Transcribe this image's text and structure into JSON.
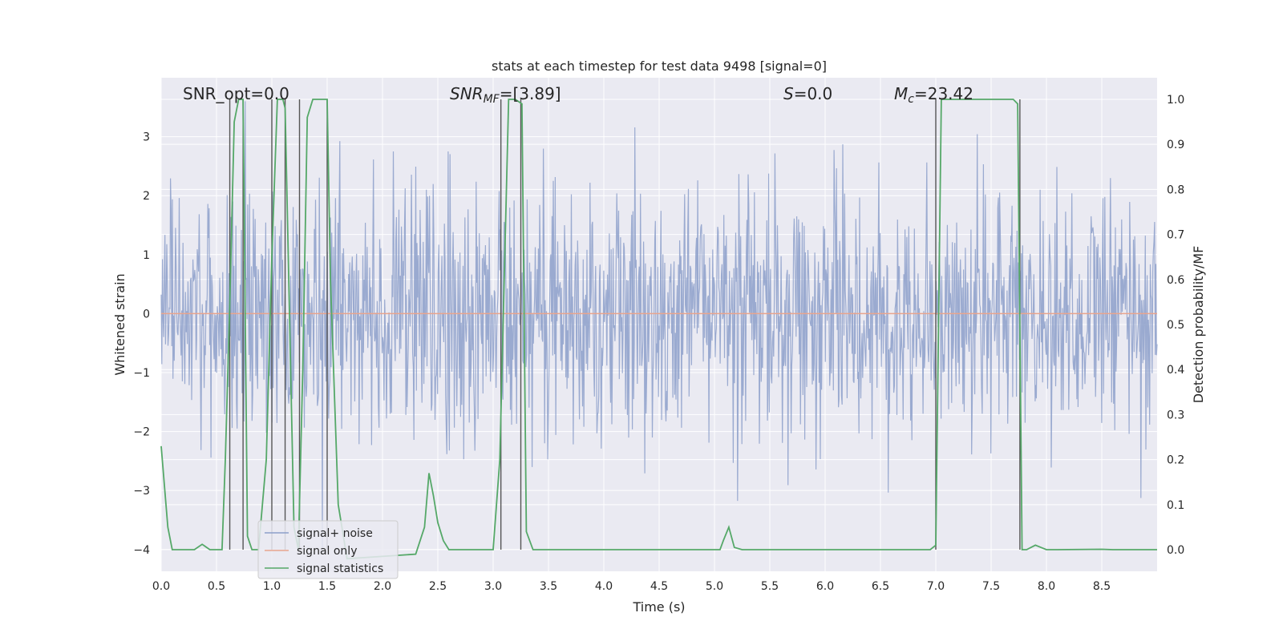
{
  "chart_data": {
    "type": "line",
    "title": "stats at each timestep for test data 9498 [signal=0]",
    "xlabel": "Time (s)",
    "ylabel_left": "Whitened strain",
    "ylabel_right": "Detection probability/MF",
    "xlim": [
      0.0,
      9.0
    ],
    "ylim_left": [
      -4.37,
      4.0
    ],
    "ylim_right": [
      -0.048,
      1.048
    ],
    "xticks": [
      "0.0",
      "0.5",
      "1.0",
      "1.5",
      "2.0",
      "2.5",
      "3.0",
      "3.5",
      "4.0",
      "4.5",
      "5.0",
      "5.5",
      "6.0",
      "6.5",
      "7.0",
      "7.5",
      "8.0",
      "8.5"
    ],
    "yticks_left": [
      "3",
      "2",
      "1",
      "0",
      "−1",
      "−2",
      "−3",
      "−4"
    ],
    "yticks_right": [
      "1.0",
      "0.9",
      "0.8",
      "0.7",
      "0.6",
      "0.5",
      "0.4",
      "0.3",
      "0.2",
      "0.1",
      "0.0"
    ],
    "grid": true,
    "legend_placement": "lower-left",
    "annotations": {
      "snr_opt": "SNR_opt=0.0",
      "snr_mf_main": "SNR",
      "snr_mf_sub": "MF",
      "snr_mf_value": "=[3.89]",
      "s_main": "S",
      "s_value": "=0.0",
      "mc_main": "M",
      "mc_sub": "c",
      "mc_value": "=23.42"
    },
    "series": [
      {
        "name": "signal+ noise",
        "color": "#8c9fca",
        "axis": "left",
        "style": "noise band",
        "band_typical": [
          -1.7,
          1.5
        ],
        "band_extreme": [
          -4.0,
          3.6
        ]
      },
      {
        "name": "signal only",
        "color": "#e8a48d",
        "axis": "left",
        "x": [
          0.0,
          9.0
        ],
        "y": [
          0.0,
          0.0
        ]
      },
      {
        "name": "signal statistics",
        "color": "#55a868",
        "axis": "right",
        "x": [
          0.0,
          0.06,
          0.1,
          0.3,
          0.37,
          0.44,
          0.55,
          0.58,
          0.62,
          0.66,
          0.7,
          0.74,
          0.78,
          0.82,
          0.88,
          0.95,
          1.0,
          1.05,
          1.1,
          1.12,
          1.2,
          1.24,
          1.28,
          1.32,
          1.37,
          1.42,
          1.5,
          1.53,
          1.6,
          1.68,
          2.3,
          2.38,
          2.42,
          2.46,
          2.5,
          2.55,
          2.6,
          2.9,
          3.0,
          3.06,
          3.1,
          3.14,
          3.2,
          3.26,
          3.3,
          3.36,
          3.4,
          5.05,
          5.08,
          5.13,
          5.18,
          5.25,
          6.5,
          6.95,
          7.0,
          7.05,
          7.1,
          7.7,
          7.74,
          7.78,
          7.82,
          7.9,
          7.95,
          8.0,
          8.1,
          8.5,
          8.6,
          9.0
        ],
        "y": [
          0.23,
          0.05,
          0.0,
          0.0,
          0.012,
          0.0,
          0.0,
          0.2,
          0.55,
          0.95,
          1.0,
          1.0,
          0.03,
          0.0,
          0.0,
          0.2,
          0.65,
          1.0,
          1.0,
          0.98,
          0.05,
          0.0,
          0.4,
          0.96,
          1.0,
          1.0,
          1.0,
          0.6,
          0.1,
          -0.02,
          -0.01,
          0.05,
          0.17,
          0.12,
          0.06,
          0.02,
          0.0,
          0.0,
          0.0,
          0.2,
          0.6,
          1.0,
          1.0,
          0.99,
          0.04,
          0.0,
          0.0,
          0.0,
          0.02,
          0.05,
          0.005,
          0.0,
          0.0,
          0.0,
          0.01,
          1.0,
          1.0,
          1.0,
          0.99,
          0.0,
          0.0,
          0.01,
          0.005,
          0.0,
          0.0,
          0.001,
          0.0,
          0.0
        ]
      }
    ],
    "vertical_markers_x": [
      0.62,
      0.74,
      1.0,
      1.12,
      1.25,
      1.5,
      3.07,
      3.25,
      7.0,
      7.76
    ]
  }
}
